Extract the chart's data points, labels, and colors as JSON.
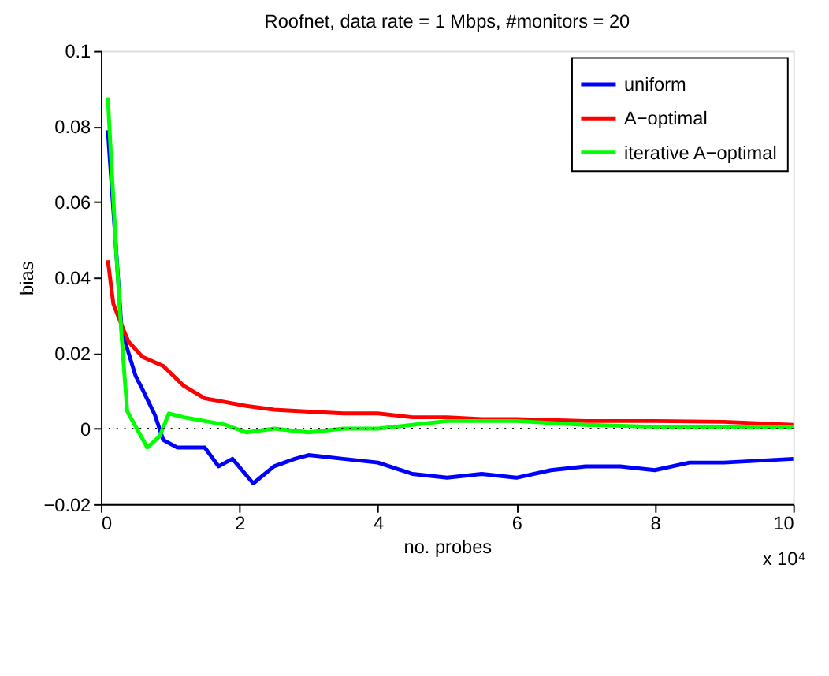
{
  "chart_data": {
    "type": "line",
    "title": "Roofnet, data rate = 1 Mbps, #monitors = 20",
    "xlabel": "no. probes",
    "ylabel": "bias",
    "annotations": [
      "x 10⁴"
    ],
    "xlim": [
      0,
      10
    ],
    "xticks": [
      0,
      2,
      4,
      6,
      8,
      10
    ],
    "ylim": [
      -0.02,
      0.1
    ],
    "yticks": [
      -0.02,
      0,
      0.02,
      0.04,
      0.06,
      0.08,
      0.1
    ],
    "grid": false,
    "legend": "top right",
    "line_style": "solid",
    "marker": "none",
    "ref_lines": [
      {
        "axis": "y",
        "value": 0,
        "color": "#000000",
        "line_style": "dotted"
      }
    ],
    "series": [
      {
        "name": "uniform",
        "color": "#0000ff",
        "x": [
          0.1,
          0.3,
          0.5,
          0.6,
          0.78,
          0.9,
          1.1,
          1.5,
          1.7,
          1.9,
          2.2,
          2.5,
          2.8,
          3.0,
          3.5,
          4.0,
          4.5,
          5.0,
          5.5,
          6.0,
          6.5,
          7.0,
          7.5,
          8.0,
          8.5,
          9.0,
          10
        ],
        "values": [
          0.079,
          0.026,
          0.014,
          0.0104,
          0.0036,
          -0.003,
          -0.005,
          -0.005,
          -0.01,
          -0.008,
          -0.0145,
          -0.01,
          -0.008,
          -0.007,
          -0.008,
          -0.009,
          -0.012,
          -0.013,
          -0.012,
          -0.013,
          -0.011,
          -0.01,
          -0.01,
          -0.011,
          -0.009,
          -0.009,
          -0.008
        ]
      },
      {
        "name": "A−optimal",
        "color": "#ff0000",
        "x": [
          0.1,
          0.18,
          0.33,
          0.4,
          0.6,
          0.9,
          1.19,
          1.5,
          1.8,
          2.1,
          2.5,
          3.0,
          3.5,
          4.0,
          4.5,
          5.0,
          5.5,
          6.0,
          7.0,
          8.0,
          9.0,
          10
        ],
        "values": [
          0.0446,
          0.033,
          0.026,
          0.023,
          0.019,
          0.0166,
          0.0114,
          0.008,
          0.007,
          0.006,
          0.005,
          0.0045,
          0.004,
          0.004,
          0.003,
          0.003,
          0.0025,
          0.0025,
          0.002,
          0.002,
          0.0018,
          0.001
        ]
      },
      {
        "name": "iterative A−optimal",
        "color": "#00ff00",
        "x": [
          0.1,
          0.22,
          0.3,
          0.38,
          0.67,
          0.85,
          0.98,
          1.2,
          1.5,
          1.8,
          2.1,
          2.5,
          3.0,
          3.5,
          4.0,
          4.5,
          5.0,
          5.5,
          6.0,
          7.0,
          8.0,
          10
        ],
        "values": [
          0.0877,
          0.047,
          0.024,
          0.0046,
          -0.005,
          -0.002,
          0.004,
          0.003,
          0.002,
          0.001,
          -0.001,
          0,
          -0.001,
          0,
          0,
          0.001,
          0.002,
          0.002,
          0.002,
          0.001,
          0.0005,
          0.0005
        ]
      }
    ]
  }
}
